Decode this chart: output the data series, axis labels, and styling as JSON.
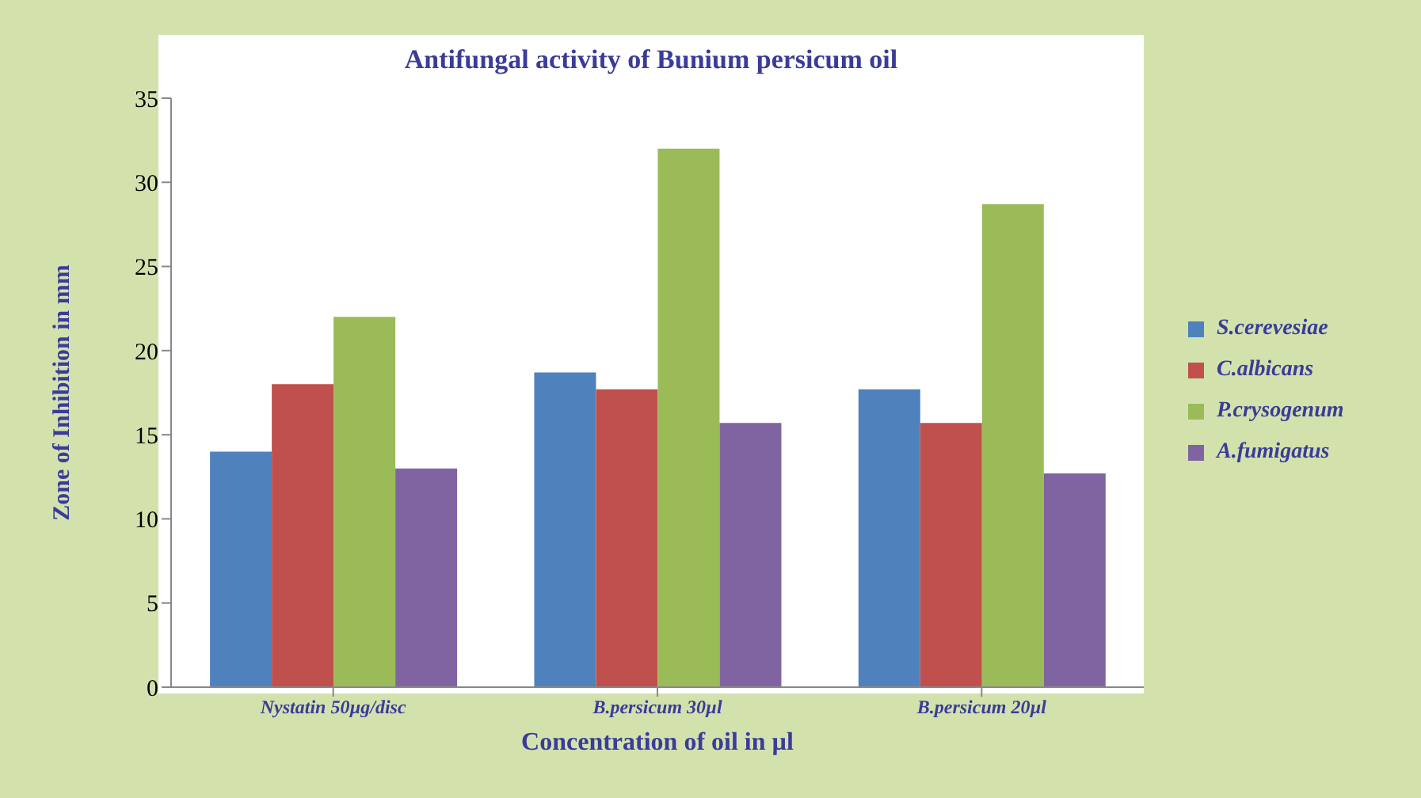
{
  "chart_data": {
    "type": "bar",
    "title": "Antifungal activity of Bunium persicum oil",
    "xlabel": "Concentration  of oil in µl",
    "ylabel": "Zone of Inhibition  in mm",
    "categories": [
      "Nystatin 50µg/disc",
      "B.persicum 30µl",
      "B.persicum 20µl"
    ],
    "series": [
      {
        "name": "S.cerevesiae",
        "color": "#4f81bd",
        "values": [
          14,
          18.7,
          17.7
        ]
      },
      {
        "name": "C.albicans",
        "color": "#c0504d",
        "values": [
          18,
          17.7,
          15.7
        ]
      },
      {
        "name": "P.crysogenum",
        "color": "#9bbb59",
        "values": [
          22,
          32,
          28.7
        ]
      },
      {
        "name": "A.fumigatus",
        "color": "#8064a2",
        "values": [
          13,
          15.7,
          12.7
        ]
      }
    ],
    "ylim": [
      0,
      35
    ],
    "yticks": [
      0,
      5,
      10,
      15,
      20,
      25,
      30,
      35
    ],
    "grid": false,
    "legend": "right"
  }
}
